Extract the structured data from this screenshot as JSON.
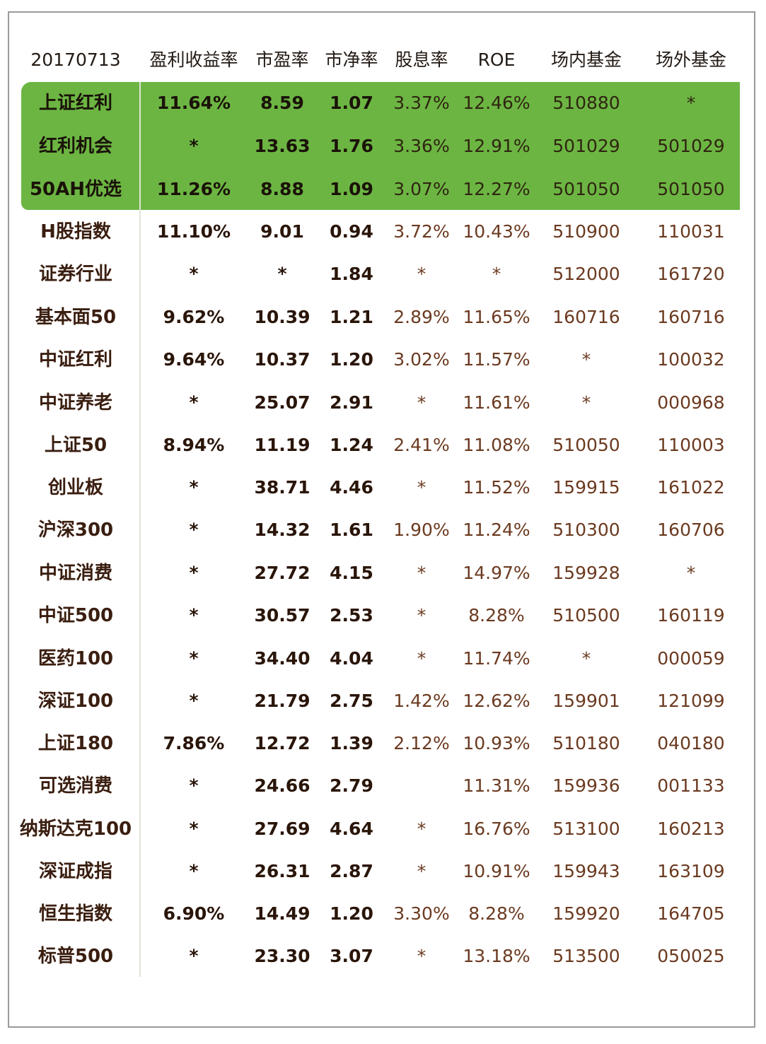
{
  "table": {
    "headers": [
      "20170713",
      "盈利收益率",
      "市盈率",
      "市净率",
      "股息率",
      "ROE",
      "场内基金",
      "场外基金"
    ],
    "highlight_color": "#6cb543",
    "highlighted_rows": [
      0,
      1,
      2
    ],
    "rows": [
      [
        "上证红利",
        "11.64%",
        "8.59",
        "1.07",
        "3.37%",
        "12.46%",
        "510880",
        "*"
      ],
      [
        "红利机会",
        "*",
        "13.63",
        "1.76",
        "3.36%",
        "12.91%",
        "501029",
        "501029"
      ],
      [
        "50AH优选",
        "11.26%",
        "8.88",
        "1.09",
        "3.07%",
        "12.27%",
        "501050",
        "501050"
      ],
      [
        "H股指数",
        "11.10%",
        "9.01",
        "0.94",
        "3.72%",
        "10.43%",
        "510900",
        "110031"
      ],
      [
        "证券行业",
        "*",
        "*",
        "1.84",
        "*",
        "*",
        "512000",
        "161720"
      ],
      [
        "基本面50",
        "9.62%",
        "10.39",
        "1.21",
        "2.89%",
        "11.65%",
        "160716",
        "160716"
      ],
      [
        "中证红利",
        "9.64%",
        "10.37",
        "1.20",
        "3.02%",
        "11.57%",
        "*",
        "100032"
      ],
      [
        "中证养老",
        "*",
        "25.07",
        "2.91",
        "*",
        "11.61%",
        "*",
        "000968"
      ],
      [
        "上证50",
        "8.94%",
        "11.19",
        "1.24",
        "2.41%",
        "11.08%",
        "510050",
        "110003"
      ],
      [
        "创业板",
        "*",
        "38.71",
        "4.46",
        "*",
        "11.52%",
        "159915",
        "161022"
      ],
      [
        "沪深300",
        "*",
        "14.32",
        "1.61",
        "1.90%",
        "11.24%",
        "510300",
        "160706"
      ],
      [
        "中证消费",
        "*",
        "27.72",
        "4.15",
        "*",
        "14.97%",
        "159928",
        "*"
      ],
      [
        "中证500",
        "*",
        "30.57",
        "2.53",
        "*",
        "8.28%",
        "510500",
        "160119"
      ],
      [
        "医药100",
        "*",
        "34.40",
        "4.04",
        "*",
        "11.74%",
        "*",
        "000059"
      ],
      [
        "深证100",
        "*",
        "21.79",
        "2.75",
        "1.42%",
        "12.62%",
        "159901",
        "121099"
      ],
      [
        "上证180",
        "7.86%",
        "12.72",
        "1.39",
        "2.12%",
        "10.93%",
        "510180",
        "040180"
      ],
      [
        "可选消费",
        "*",
        "24.66",
        "2.79",
        "",
        "11.31%",
        "159936",
        "001133"
      ],
      [
        "纳斯达克100",
        "*",
        "27.69",
        "4.64",
        "*",
        "16.76%",
        "513100",
        "160213"
      ],
      [
        "深证成指",
        "*",
        "26.31",
        "2.87",
        "*",
        "10.91%",
        "159943",
        "163109"
      ],
      [
        "恒生指数",
        "6.90%",
        "14.49",
        "1.20",
        "3.30%",
        "8.28%",
        "159920",
        "164705"
      ],
      [
        "标普500",
        "*",
        "23.30",
        "3.07",
        "*",
        "13.18%",
        "513500",
        "050025"
      ]
    ]
  }
}
